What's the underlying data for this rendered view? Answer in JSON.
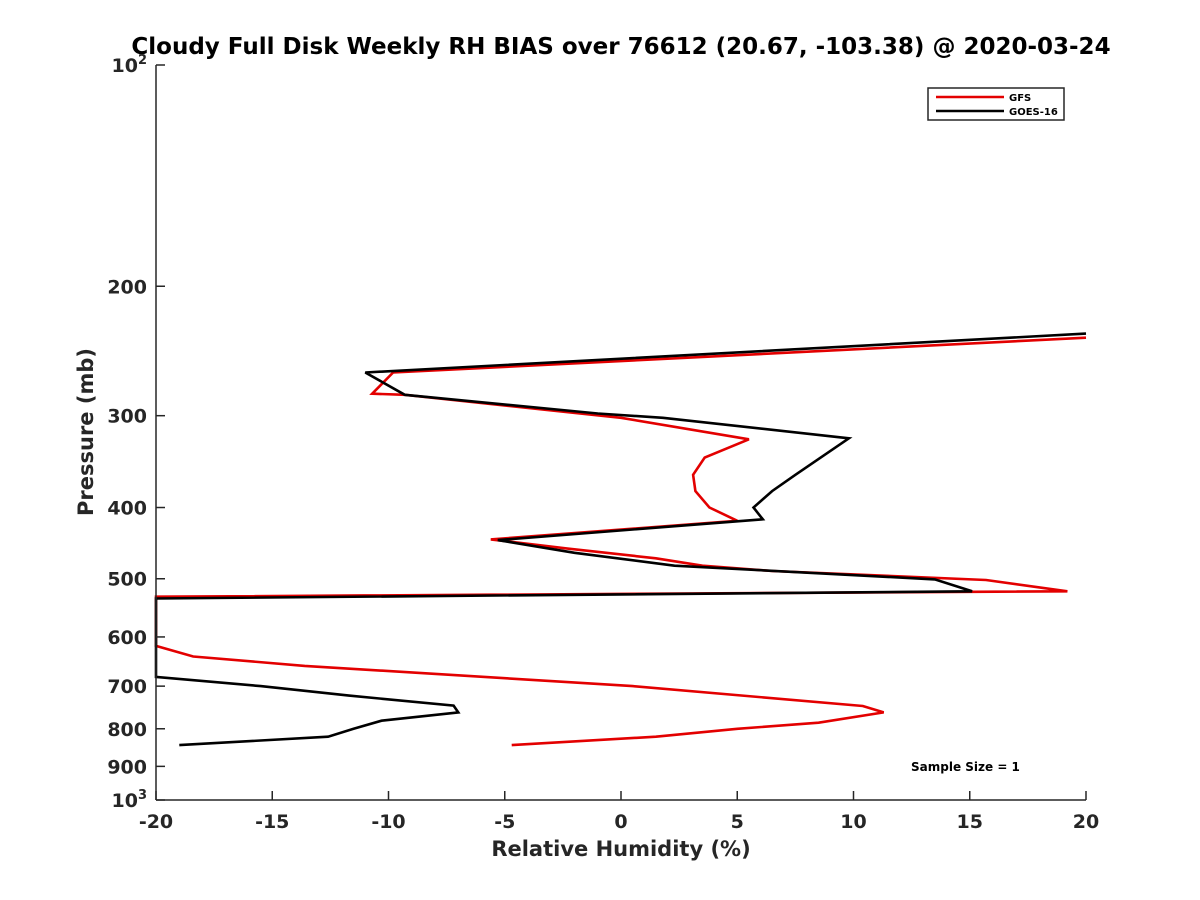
{
  "colors": {
    "gfs": "#e30000",
    "goes": "#000000",
    "axis": "#262626"
  },
  "chart_data": {
    "type": "line",
    "title": "Cloudy Full Disk Weekly RH BIAS over 76612 (20.67, -103.38) @ 2020-03-24",
    "xlabel": "Relative Humidity (%)",
    "ylabel": "Pressure (mb)",
    "xlim": [
      -20,
      20
    ],
    "ylim": [
      100,
      1000
    ],
    "yscale": "log",
    "y_reversed": true,
    "x_ticks": [
      {
        "value": -20,
        "label": "-20"
      },
      {
        "value": -15,
        "label": "-15"
      },
      {
        "value": -10,
        "label": "-10"
      },
      {
        "value": -5,
        "label": "-5"
      },
      {
        "value": 0,
        "label": "0"
      },
      {
        "value": 5,
        "label": "5"
      },
      {
        "value": 10,
        "label": "10"
      },
      {
        "value": 15,
        "label": "15"
      },
      {
        "value": 20,
        "label": "20"
      }
    ],
    "y_ticks": [
      {
        "value": 100,
        "base": "10",
        "exp": "2"
      },
      {
        "value": 200,
        "label": "200"
      },
      {
        "value": 300,
        "label": "300"
      },
      {
        "value": 400,
        "label": "400"
      },
      {
        "value": 500,
        "label": "500"
      },
      {
        "value": 600,
        "label": "600"
      },
      {
        "value": 700,
        "label": "700"
      },
      {
        "value": 800,
        "label": "800"
      },
      {
        "value": 900,
        "label": "900"
      },
      {
        "value": 1000,
        "base": "10",
        "exp": "3"
      }
    ],
    "legend": {
      "position": "top-right",
      "entries": [
        "GFS",
        "GOES-16"
      ]
    },
    "annotation": "Sample Size = 1",
    "series": [
      {
        "name": "GFS",
        "color": "#e30000",
        "points": [
          {
            "x": 20,
            "y": 235
          },
          {
            "x": -9.8,
            "y": 262
          },
          {
            "x": -10.7,
            "y": 280
          },
          {
            "x": -9.3,
            "y": 281
          },
          {
            "x": 0,
            "y": 302
          },
          {
            "x": 5.5,
            "y": 323
          },
          {
            "x": 3.6,
            "y": 342
          },
          {
            "x": 3.1,
            "y": 361
          },
          {
            "x": 3.2,
            "y": 380
          },
          {
            "x": 3.8,
            "y": 400
          },
          {
            "x": 5.0,
            "y": 417
          },
          {
            "x": -5.6,
            "y": 442
          },
          {
            "x": -2.3,
            "y": 455
          },
          {
            "x": 1.5,
            "y": 469
          },
          {
            "x": 3.5,
            "y": 480
          },
          {
            "x": 6.5,
            "y": 488
          },
          {
            "x": 15.7,
            "y": 502
          },
          {
            "x": 19.2,
            "y": 520
          },
          {
            "x": -20,
            "y": 529
          },
          {
            "x": -20,
            "y": 617
          },
          {
            "x": -18.4,
            "y": 638
          },
          {
            "x": -13.6,
            "y": 657
          },
          {
            "x": 0.5,
            "y": 700
          },
          {
            "x": 10.4,
            "y": 745
          },
          {
            "x": 11.3,
            "y": 760
          },
          {
            "x": 8.5,
            "y": 785
          },
          {
            "x": 5.0,
            "y": 800
          },
          {
            "x": 1.5,
            "y": 820
          },
          {
            "x": -4.7,
            "y": 842
          }
        ]
      },
      {
        "name": "GOES-16",
        "color": "#000000",
        "points": [
          {
            "x": 20,
            "y": 232
          },
          {
            "x": -11.0,
            "y": 262
          },
          {
            "x": -9.3,
            "y": 281
          },
          {
            "x": -1.0,
            "y": 298
          },
          {
            "x": 1.8,
            "y": 302
          },
          {
            "x": 9.8,
            "y": 322
          },
          {
            "x": 7.5,
            "y": 361
          },
          {
            "x": 6.5,
            "y": 380
          },
          {
            "x": 5.7,
            "y": 400
          },
          {
            "x": 6.1,
            "y": 415
          },
          {
            "x": -5.3,
            "y": 443
          },
          {
            "x": -2.0,
            "y": 461
          },
          {
            "x": 2.3,
            "y": 480
          },
          {
            "x": 13.5,
            "y": 501
          },
          {
            "x": 15.1,
            "y": 520
          },
          {
            "x": -20,
            "y": 532
          },
          {
            "x": -20,
            "y": 680
          },
          {
            "x": -15.5,
            "y": 700
          },
          {
            "x": -11.7,
            "y": 721
          },
          {
            "x": -7.2,
            "y": 744
          },
          {
            "x": -7.0,
            "y": 760
          },
          {
            "x": -10.3,
            "y": 780
          },
          {
            "x": -11.5,
            "y": 800
          },
          {
            "x": -12.6,
            "y": 820
          },
          {
            "x": -19.0,
            "y": 842
          }
        ]
      }
    ]
  }
}
